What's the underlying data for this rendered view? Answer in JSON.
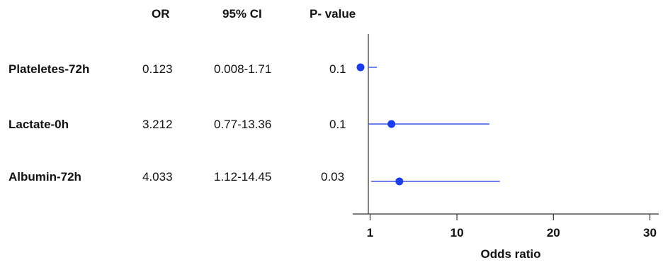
{
  "chart_data": {
    "type": "forest",
    "columns": {
      "or": "OR",
      "ci": "95% CI",
      "p": "P- value"
    },
    "rows": [
      {
        "label": "Plateletes-72h",
        "or_text": "0.123",
        "ci_text": "0.008-1.71",
        "p_text": "0.1",
        "or": 0.123,
        "ci_low": 0.008,
        "ci_high": 1.71
      },
      {
        "label": "Lactate-0h",
        "or_text": "3.212",
        "ci_text": "0.77-13.36",
        "p_text": "0.1",
        "or": 3.212,
        "ci_low": 0.77,
        "ci_high": 13.36
      },
      {
        "label": "Albumin-72h",
        "or_text": "4.033",
        "ci_text": "1.12-14.45",
        "p_text": "0.03",
        "or": 4.033,
        "ci_low": 1.12,
        "ci_high": 14.45
      }
    ],
    "x_axis": {
      "label": "Odds ratio",
      "ticks": [
        1,
        10,
        20,
        30
      ],
      "tick_labels": [
        "1",
        "10",
        "20",
        "30"
      ]
    },
    "colors": {
      "marker": "#1a3df0",
      "line": "#3b55e6",
      "axis": "#333333"
    }
  }
}
